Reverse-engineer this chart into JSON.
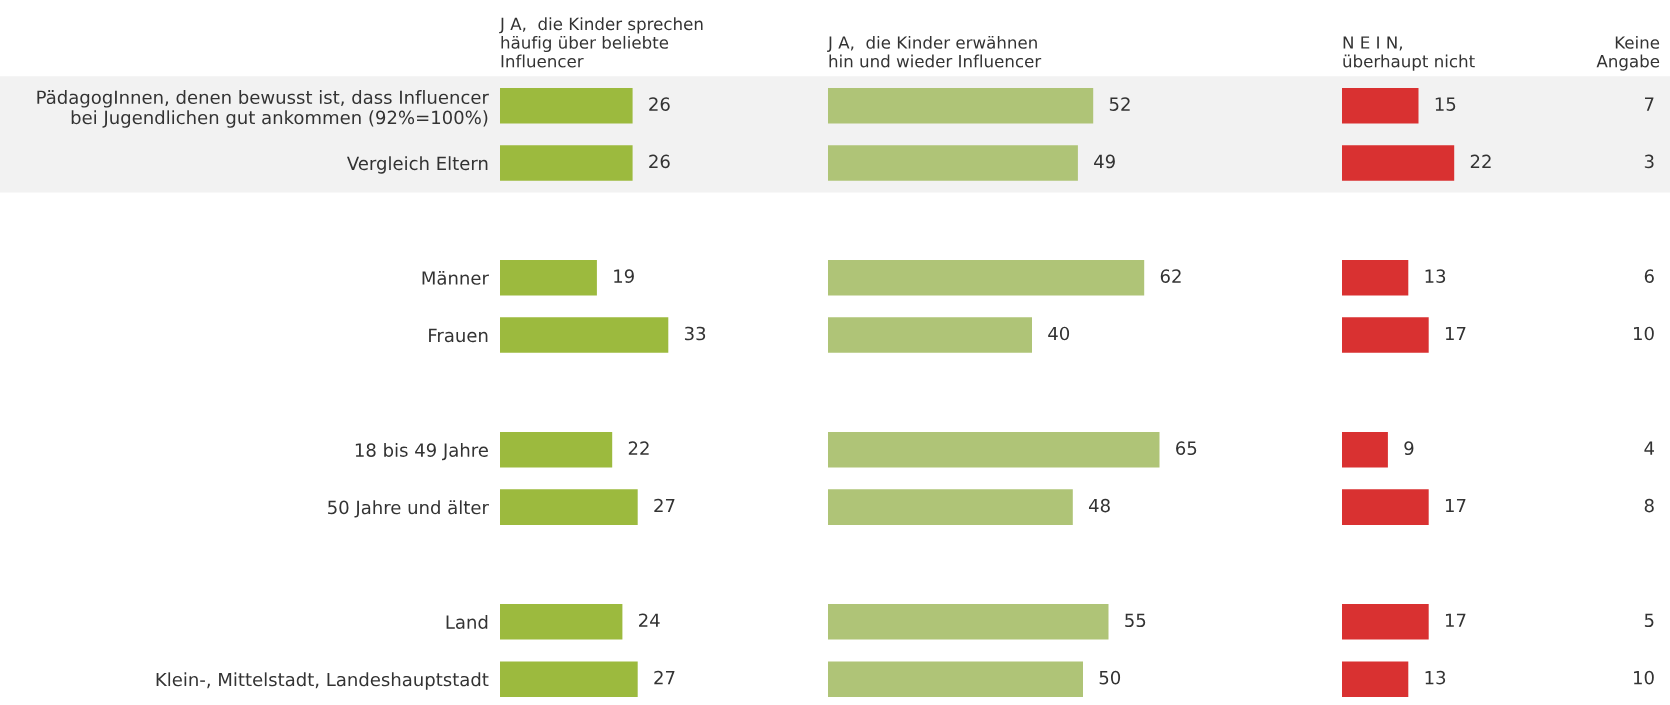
{
  "chart_data": [
    {
      "type": "bar",
      "orientation": "horizontal",
      "title": "J A,  die Kinder sprechen\nhäufig über beliebte\nInfluencer",
      "categories": [
        "PädagogInnen, denen bewusst ist, dass Influencer\nbei Jugendlichen gut ankommen (92%=100%)",
        "Vergleich Eltern",
        null,
        "Männer",
        "Frauen",
        null,
        "18 bis 49 Jahre",
        "50 Jahre und älter",
        null,
        "Land",
        "Klein-, Mittelstadt, Landeshauptstadt"
      ],
      "values": [
        26,
        26,
        null,
        19,
        33,
        null,
        22,
        27,
        null,
        24,
        27
      ],
      "color": "#9cba3e",
      "data_labels": true,
      "tick_labels": "y"
    },
    {
      "type": "bar",
      "orientation": "horizontal",
      "title": "J A,  die Kinder erwähnen\nhin und wieder Influencer",
      "values": [
        52,
        49,
        null,
        62,
        40,
        null,
        65,
        48,
        null,
        55,
        50
      ],
      "color": "#afc477",
      "data_labels": true,
      "tick_labels": false
    },
    {
      "type": "bar",
      "orientation": "horizontal",
      "title": "N E I N,\nüberhaupt nicht",
      "values": [
        15,
        22,
        null,
        13,
        17,
        null,
        9,
        17,
        null,
        17,
        13
      ],
      "color": "#d93131",
      "data_labels": true,
      "tick_labels": false
    },
    {
      "type": "other",
      "title": "Keine\nAngabe",
      "values": [
        7,
        3,
        null,
        6,
        10,
        null,
        4,
        8,
        null,
        5,
        10
      ],
      "value_labels": [
        "7",
        "3",
        null,
        "6",
        "10",
        null,
        "4",
        "8",
        null,
        "5",
        "10"
      ]
    }
  ]
}
